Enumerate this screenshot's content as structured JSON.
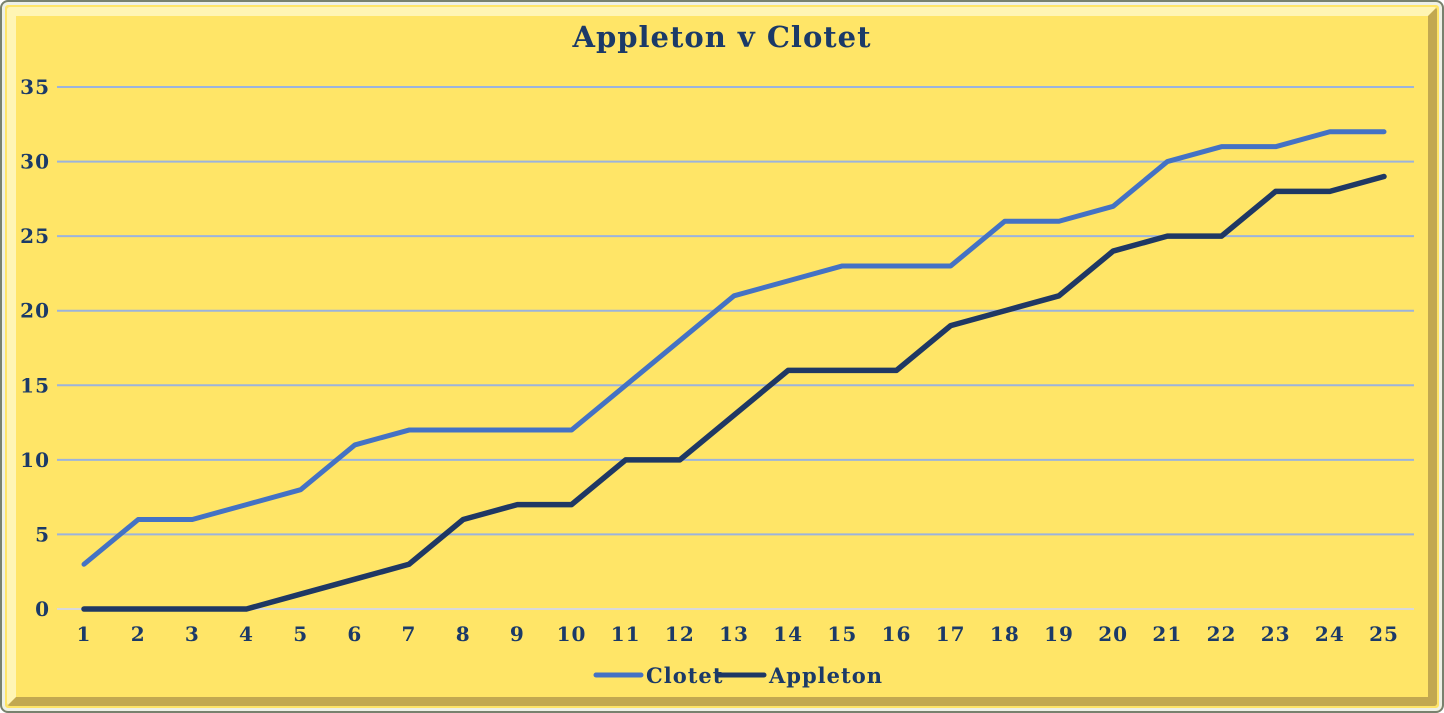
{
  "chart_data": {
    "type": "line",
    "title": "Appleton v Clotet",
    "categories": [
      1,
      2,
      3,
      4,
      5,
      6,
      7,
      8,
      9,
      10,
      11,
      12,
      13,
      14,
      15,
      16,
      17,
      18,
      19,
      20,
      21,
      22,
      23,
      24,
      25
    ],
    "series": [
      {
        "name": "Clotet",
        "color": "#4472C4",
        "values": [
          3,
          6,
          6,
          7,
          8,
          11,
          12,
          12,
          12,
          12,
          15,
          18,
          21,
          22,
          23,
          23,
          23,
          26,
          26,
          27,
          30,
          31,
          31,
          32,
          32
        ]
      },
      {
        "name": "Appleton",
        "color": "#1F3864",
        "values": [
          0,
          0,
          0,
          0,
          1,
          2,
          3,
          6,
          7,
          7,
          10,
          10,
          13,
          16,
          16,
          16,
          19,
          20,
          21,
          24,
          25,
          25,
          28,
          28,
          29
        ]
      }
    ],
    "xlabel": "",
    "ylabel": "",
    "ylim": [
      0,
      35
    ],
    "yticks": [
      0,
      5,
      10,
      15,
      20,
      25,
      30,
      35
    ],
    "grid": "horizontal",
    "legend_position": "bottom",
    "theme": {
      "background": "#FFE567",
      "bevel_highlight": "#FFF5B4",
      "bevel_shadow": "#C2A850",
      "frame_border": "#78816E",
      "gridline_color": "#9CB3DC",
      "zero_line_color": "#D9D9D9",
      "text_color": "#1B3A68"
    }
  }
}
